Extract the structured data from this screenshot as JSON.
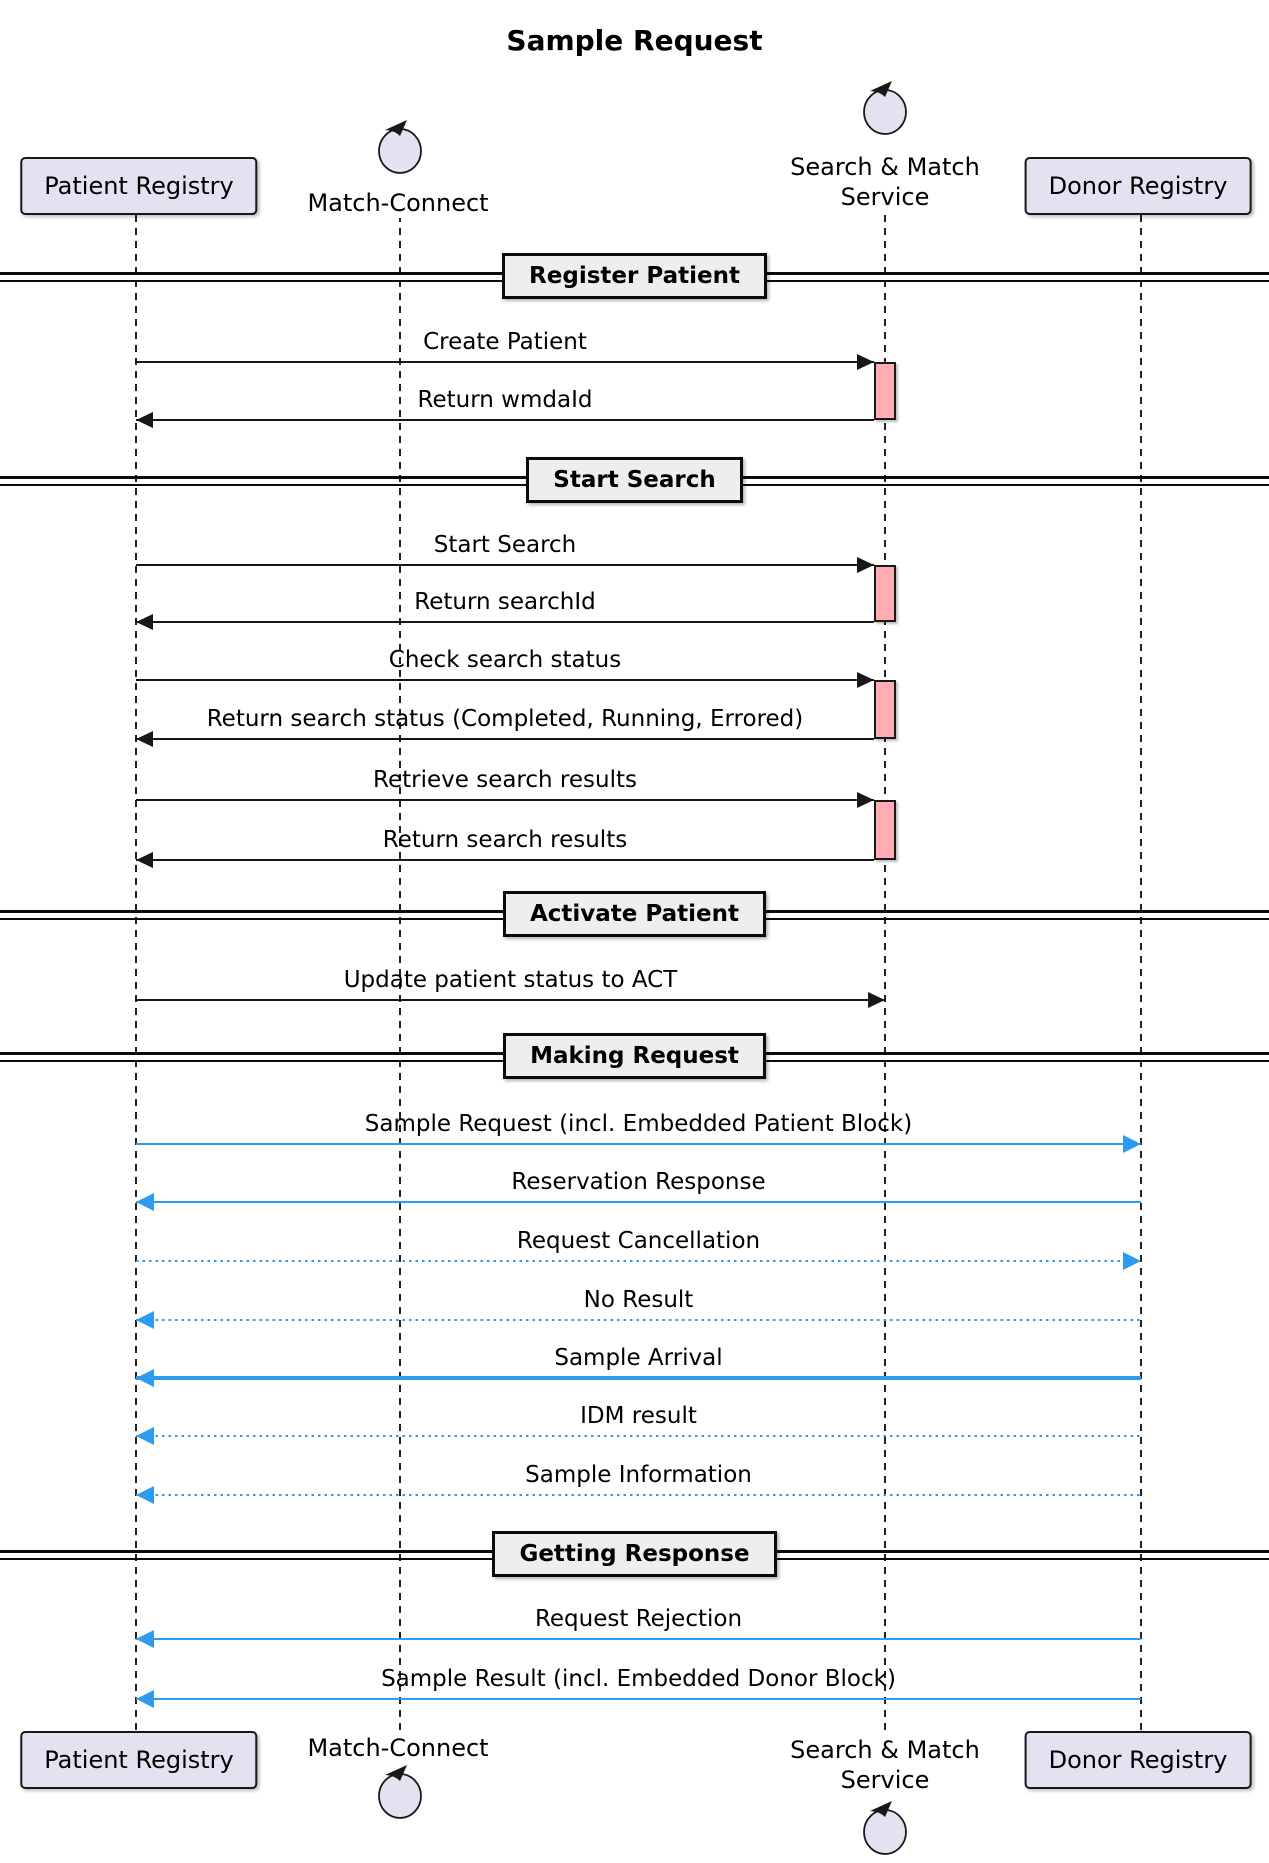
{
  "title": "Sample Request",
  "colors": {
    "blue_accent": "#2D9BF0",
    "black_message": "#181818",
    "participant_fill": "#E2E2F0",
    "participant_border": "#181818",
    "divider_fill": "#EEEEEE",
    "activation_fill": "#FFADB3"
  },
  "participants": [
    {
      "id": "patient-registry",
      "label": "Patient Registry",
      "type": "box"
    },
    {
      "id": "match-connect",
      "label": "Match-Connect",
      "type": "control",
      "icon": "control-loop-arrow-icon"
    },
    {
      "id": "search-match",
      "label": "Search & Match Service",
      "label_lines": [
        "Search & Match",
        "Service"
      ],
      "type": "control",
      "icon": "control-loop-arrow-icon"
    },
    {
      "id": "donor-registry",
      "label": "Donor Registry",
      "type": "box"
    }
  ],
  "events": [
    {
      "type": "divider",
      "label": "Register Patient"
    },
    {
      "type": "message",
      "label": "Create Patient",
      "from": "patient-registry",
      "to": "search-match",
      "color": "black",
      "line": "solid",
      "activation": true
    },
    {
      "type": "message",
      "label": "Return wmdaId",
      "from": "search-match",
      "to": "patient-registry",
      "color": "black",
      "line": "solid"
    },
    {
      "type": "divider",
      "label": "Start Search"
    },
    {
      "type": "message",
      "label": "Start Search",
      "from": "patient-registry",
      "to": "search-match",
      "color": "black",
      "line": "solid",
      "activation": true
    },
    {
      "type": "message",
      "label": "Return searchId",
      "from": "search-match",
      "to": "patient-registry",
      "color": "black",
      "line": "solid"
    },
    {
      "type": "message",
      "label": "Check search status",
      "from": "patient-registry",
      "to": "search-match",
      "color": "black",
      "line": "solid",
      "activation": true
    },
    {
      "type": "message",
      "label": "Return search status (Completed, Running, Errored)",
      "from": "search-match",
      "to": "patient-registry",
      "color": "black",
      "line": "solid"
    },
    {
      "type": "message",
      "label": "Retrieve search results",
      "from": "patient-registry",
      "to": "search-match",
      "color": "black",
      "line": "solid",
      "activation": true
    },
    {
      "type": "message",
      "label": "Return search results",
      "from": "search-match",
      "to": "patient-registry",
      "color": "black",
      "line": "solid"
    },
    {
      "type": "divider",
      "label": "Activate Patient"
    },
    {
      "type": "message",
      "label": "Update patient status to ACT",
      "from": "patient-registry",
      "to": "search-match",
      "color": "black",
      "line": "solid"
    },
    {
      "type": "divider",
      "label": "Making Request"
    },
    {
      "type": "message",
      "label": "Sample Request (incl. Embedded Patient Block)",
      "from": "patient-registry",
      "to": "donor-registry",
      "color": "blue",
      "line": "solid"
    },
    {
      "type": "message",
      "label": "Reservation Response",
      "from": "donor-registry",
      "to": "patient-registry",
      "color": "blue",
      "line": "solid"
    },
    {
      "type": "message",
      "label": "Request Cancellation",
      "from": "patient-registry",
      "to": "donor-registry",
      "color": "blue",
      "line": "dotted"
    },
    {
      "type": "message",
      "label": "No Result",
      "from": "donor-registry",
      "to": "patient-registry",
      "color": "blue",
      "line": "dotted"
    },
    {
      "type": "message",
      "label": "Sample Arrival",
      "from": "donor-registry",
      "to": "patient-registry",
      "color": "blue",
      "line": "solid",
      "thick": true
    },
    {
      "type": "message",
      "label": "IDM result",
      "from": "donor-registry",
      "to": "patient-registry",
      "color": "blue",
      "line": "dotted"
    },
    {
      "type": "message",
      "label": "Sample Information",
      "from": "donor-registry",
      "to": "patient-registry",
      "color": "blue",
      "line": "dotted"
    },
    {
      "type": "divider",
      "label": "Getting Response"
    },
    {
      "type": "message",
      "label": "Request Rejection",
      "from": "donor-registry",
      "to": "patient-registry",
      "color": "blue",
      "line": "solid"
    },
    {
      "type": "message",
      "label": "Sample Result (incl. Embedded Donor Block)",
      "from": "donor-registry",
      "to": "patient-registry",
      "color": "blue",
      "line": "solid"
    }
  ]
}
